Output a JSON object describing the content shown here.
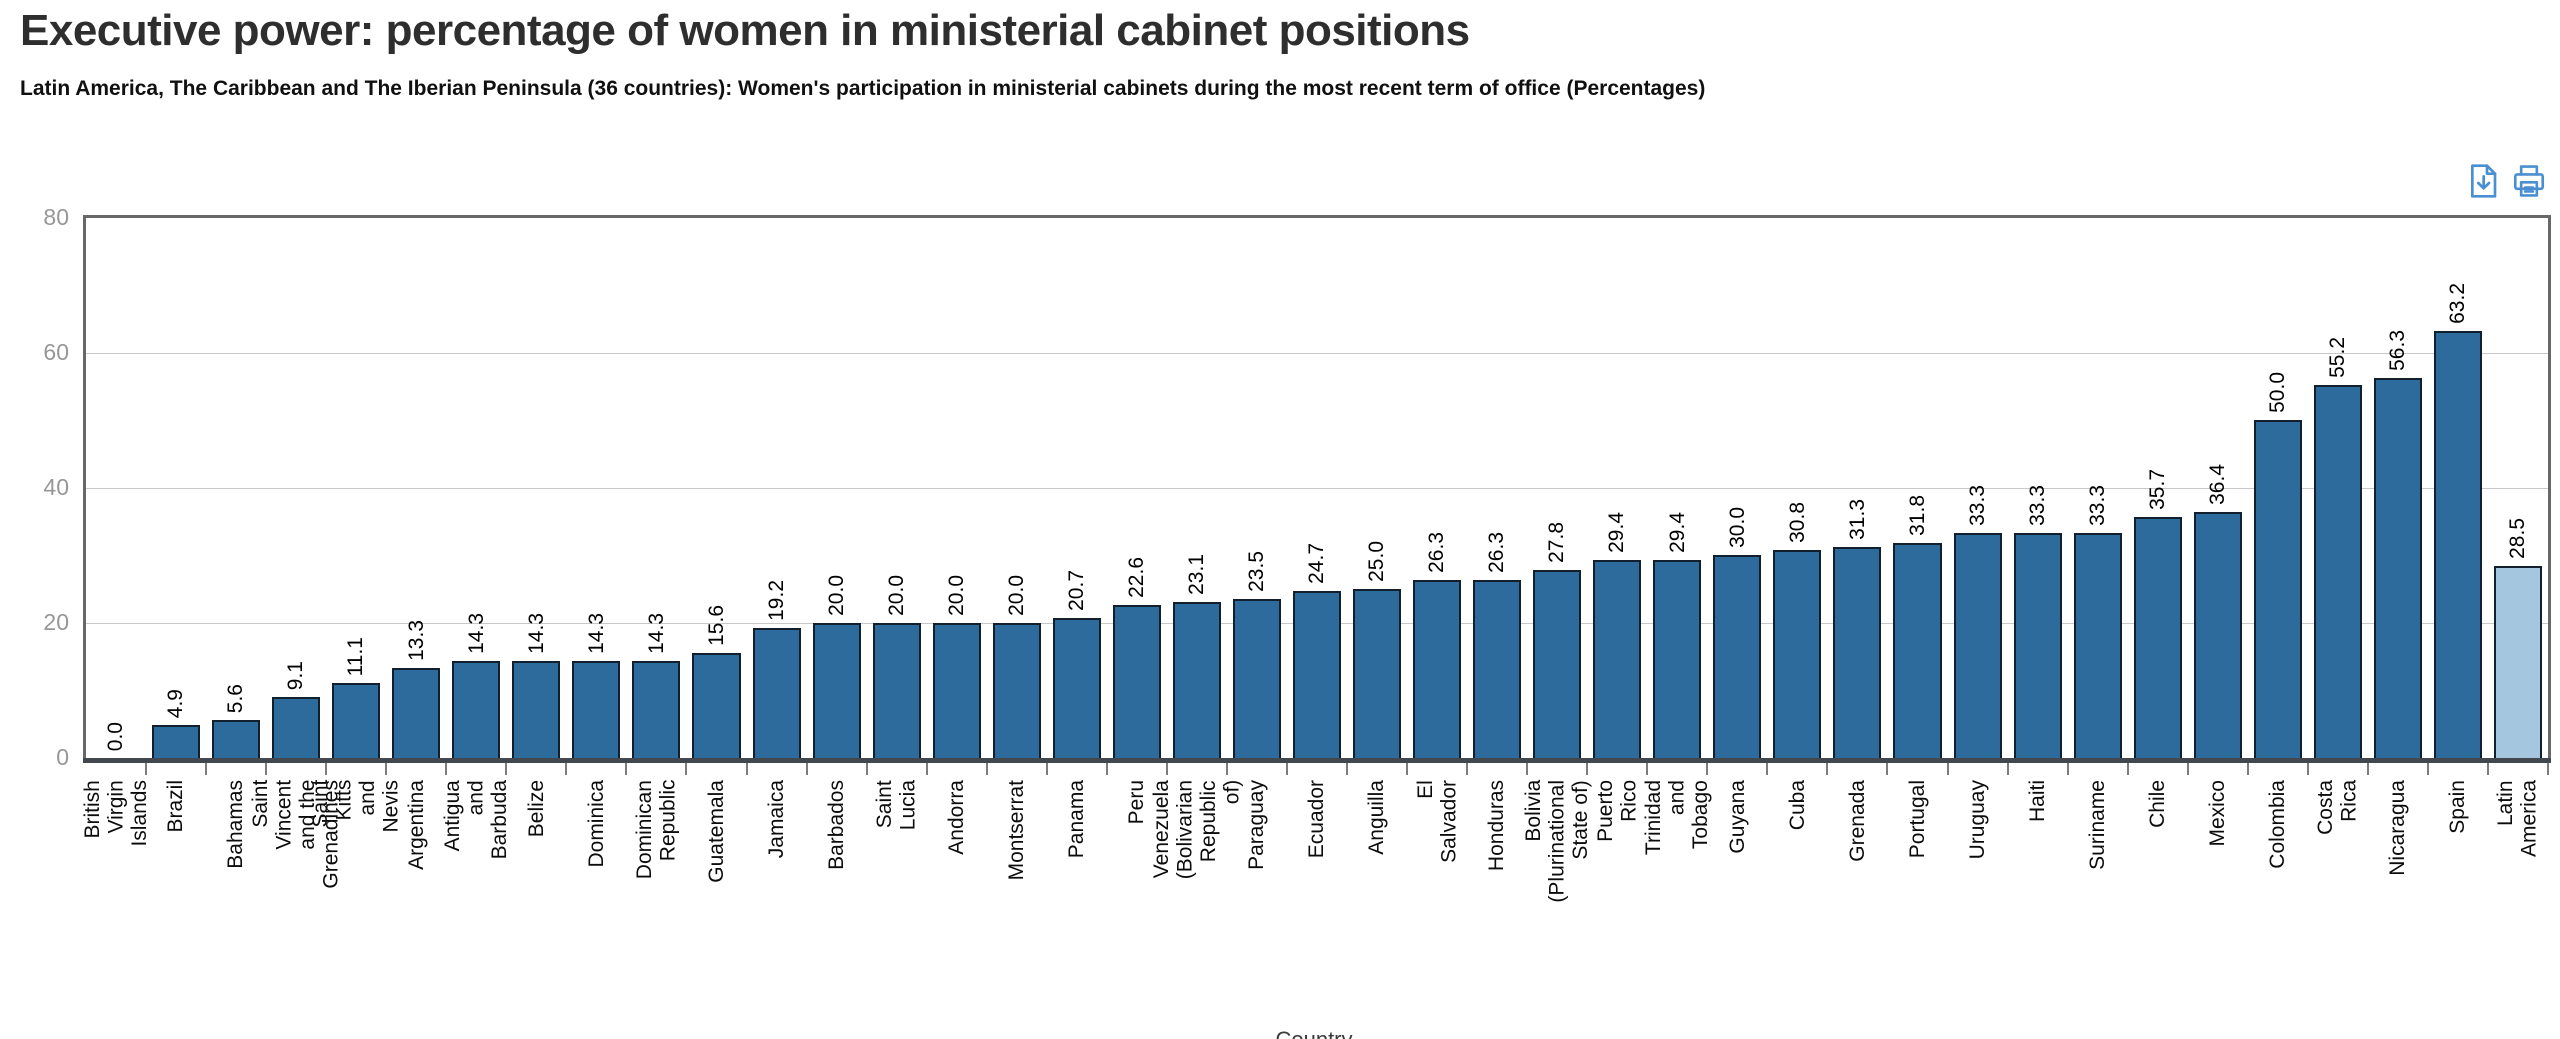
{
  "header": {
    "title": "Executive power: percentage of women in ministerial cabinet positions",
    "subtitle": "Latin America, The Caribbean and The Iberian Peninsula (36 countries): Women's participation in ministerial cabinets during the most recent term of office (Percentages)"
  },
  "toolbar": {
    "download_icon": "file-download-icon",
    "print_icon": "printer-icon",
    "icon_color": "#4a8fd1"
  },
  "chart_data": {
    "type": "bar",
    "title": "Executive power: percentage of women in ministerial cabinet positions",
    "xlabel": "Country",
    "ylabel": "",
    "ylim": [
      0,
      80
    ],
    "yticks": [
      0,
      20,
      40,
      60,
      80
    ],
    "grid": true,
    "value_labels": "one-decimal, rotated 90deg above bars",
    "categories": [
      "British Virgin Islands",
      "Brazil",
      "Bahamas",
      "Saint Vincent and the\nGrenadines",
      "Saint Kitts and Nevis",
      "Argentina",
      "Antigua and Barbuda",
      "Belize",
      "Dominica",
      "Dominican Republic",
      "Guatemala",
      "Jamaica",
      "Barbados",
      "Saint Lucia",
      "Andorra",
      "Montserrat",
      "Panama",
      "Peru",
      "Venezuela (Bolivarian\nRepublic of)",
      "Paraguay",
      "Ecuador",
      "Anguilla",
      "El Salvador",
      "Honduras",
      "Bolivia\n(Plurinational State of)",
      "Puerto Rico",
      "Trinidad and Tobago",
      "Guyana",
      "Cuba",
      "Grenada",
      "Portugal",
      "Uruguay",
      "Haiti",
      "Suriname",
      "Chile",
      "Mexico",
      "Colombia",
      "Costa Rica",
      "Nicaragua",
      "Spain",
      "Latin America"
    ],
    "values": [
      0.0,
      4.9,
      5.6,
      9.1,
      11.1,
      13.3,
      14.3,
      14.3,
      14.3,
      14.3,
      15.6,
      19.2,
      20.0,
      20.0,
      20.0,
      20.0,
      20.7,
      22.6,
      23.1,
      23.5,
      24.7,
      25.0,
      26.3,
      26.3,
      27.8,
      29.4,
      29.4,
      30.0,
      30.8,
      31.3,
      31.8,
      33.3,
      33.3,
      33.3,
      35.7,
      36.4,
      50.0,
      55.2,
      56.3,
      63.2,
      28.5
    ],
    "region_bar_index": 40,
    "colors": {
      "bar": "#2E6B9D",
      "bar_edge": "#121F2C",
      "region_bar": "#A4C6DE",
      "grid": "#C8C8C8",
      "spine": "#686868",
      "axis_line": "#42484E",
      "tick_label": "#979797"
    }
  }
}
